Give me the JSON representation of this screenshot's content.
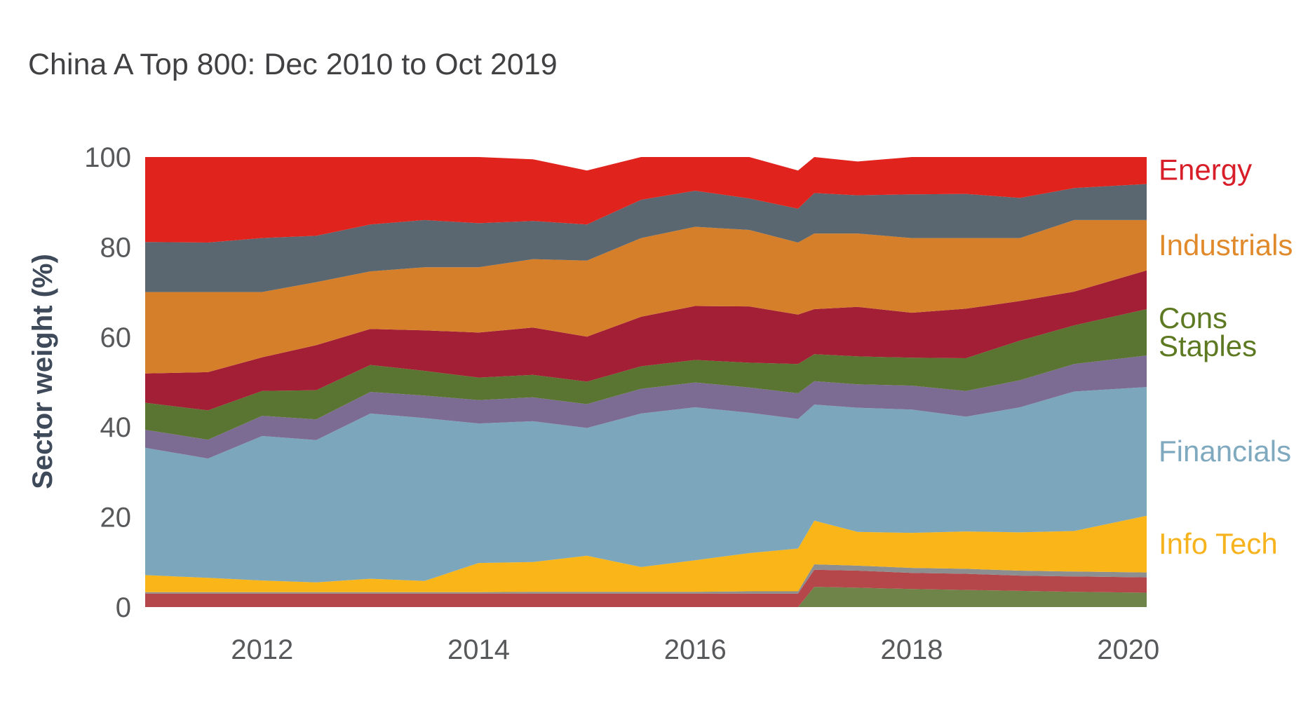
{
  "title": "China A Top 800: Dec 2010 to Oct 2019",
  "chart_data": {
    "type": "area",
    "stacked": true,
    "title": "China A Top 800: Dec 2010 to Oct 2019",
    "xlabel": "",
    "ylabel": "Sector weight (%)",
    "xlim": [
      2010.92,
      2020.17
    ],
    "ylim": [
      0,
      100
    ],
    "xticks": [
      "2012",
      "2014",
      "2016",
      "2018",
      "2020"
    ],
    "yticks": [
      "0",
      "20",
      "40",
      "60",
      "80",
      "100"
    ],
    "grid": false,
    "legend": "right, labels beside series",
    "x": [
      2010.92,
      2011.5,
      2012.0,
      2012.5,
      2013.0,
      2013.5,
      2014.0,
      2014.5,
      2015.0,
      2015.5,
      2016.0,
      2016.5,
      2016.95,
      2017.1,
      2017.5,
      2018.0,
      2018.5,
      2019.0,
      2019.5,
      2020.17
    ],
    "series": [
      {
        "name": "",
        "color": "#6e8449",
        "values": [
          0,
          0,
          0,
          0,
          0,
          0,
          0,
          0,
          0,
          0,
          0,
          0,
          0,
          4.5,
          4.3,
          4,
          3.8,
          3.6,
          3.4,
          3.2
        ]
      },
      {
        "name": "",
        "color": "#b5474b",
        "values": [
          3,
          3,
          3,
          3,
          3,
          3,
          3,
          3,
          3,
          3,
          3,
          3,
          3,
          3.8,
          3.8,
          3.6,
          3.6,
          3.4,
          3.4,
          3.4
        ]
      },
      {
        "name": "",
        "color": "#8c8e8f",
        "values": [
          0.3,
          0.3,
          0.3,
          0.3,
          0.3,
          0.3,
          0.3,
          0.4,
          0.4,
          0.4,
          0.4,
          0.5,
          0.5,
          1.2,
          1.1,
          1.1,
          1.1,
          1.1,
          1.1,
          1.1
        ]
      },
      {
        "name": "Info Tech",
        "color": "#fab619",
        "values": [
          3.8,
          3.2,
          2.6,
          2.2,
          3.0,
          2.5,
          6.5,
          6.6,
          8.0,
          5.5,
          7.0,
          8.5,
          9.5,
          9.7,
          7.5,
          7.8,
          8.3,
          8.5,
          9.0,
          12.6
        ]
      },
      {
        "name": "Financials",
        "color": "#7ba6bc",
        "values": [
          28.3,
          26.5,
          32.1,
          31.6,
          36.7,
          36.2,
          31.0,
          31.3,
          28.4,
          34.1,
          34.0,
          31.2,
          28.8,
          25.8,
          27.6,
          27.4,
          25.5,
          27.8,
          31.0,
          28.6
        ]
      },
      {
        "name": "",
        "color": "#7c6b93",
        "values": [
          4.0,
          4.2,
          4.5,
          4.6,
          4.8,
          5.0,
          5.2,
          5.3,
          5.3,
          5.5,
          5.5,
          5.6,
          5.7,
          5.2,
          5.2,
          5.3,
          5.7,
          6.0,
          6.1,
          7.0
        ]
      },
      {
        "name": "Cons Staples",
        "color": "#5a7531",
        "values": [
          6.0,
          6.5,
          5.5,
          6.5,
          6.0,
          5.5,
          5.0,
          5.0,
          5.0,
          5.0,
          5.0,
          5.5,
          6.5,
          6.0,
          6.2,
          6.2,
          7.3,
          8.8,
          8.6,
          10.3
        ]
      },
      {
        "name": "",
        "color": "#a21f35",
        "values": [
          6.5,
          8.5,
          7.5,
          10.0,
          8.0,
          9.0,
          10.0,
          10.5,
          10.0,
          11.0,
          12.0,
          12.5,
          11.0,
          10.0,
          11.0,
          10.0,
          11.0,
          8.8,
          7.5,
          8.6
        ]
      },
      {
        "name": "Industrials",
        "color": "#d67f2a",
        "values": [
          18.1,
          17.8,
          14.5,
          14.0,
          12.8,
          14.0,
          14.5,
          15.2,
          16.9,
          17.5,
          17.6,
          17.0,
          16.0,
          16.8,
          16.3,
          16.6,
          15.7,
          14.0,
          15.9,
          11.2
        ]
      },
      {
        "name": "",
        "color": "#5a6770",
        "values": [
          11.1,
          11.0,
          12.0,
          10.3,
          10.4,
          10.5,
          9.8,
          8.5,
          8.0,
          8.5,
          8.0,
          7.0,
          7.5,
          9.0,
          8.5,
          9.7,
          9.8,
          8.9,
          7.1,
          8.0
        ]
      },
      {
        "name": "Energy",
        "color": "#e1231e",
        "values": [
          18.9,
          19.0,
          18.0,
          17.5,
          16.0,
          15.0,
          14.7,
          13.7,
          12.0,
          9.5,
          7.5,
          9.2,
          8.5,
          8.0,
          7.5,
          8.3,
          8.2,
          9.1,
          8.8,
          6.3
        ]
      }
    ]
  },
  "legend_colors": {
    "Energy": "#d81e28",
    "Industrials": "#e08a2b",
    "Cons Staples": "#5d7a22",
    "Financials": "#7fa9be",
    "Info Tech": "#f7b31d"
  }
}
